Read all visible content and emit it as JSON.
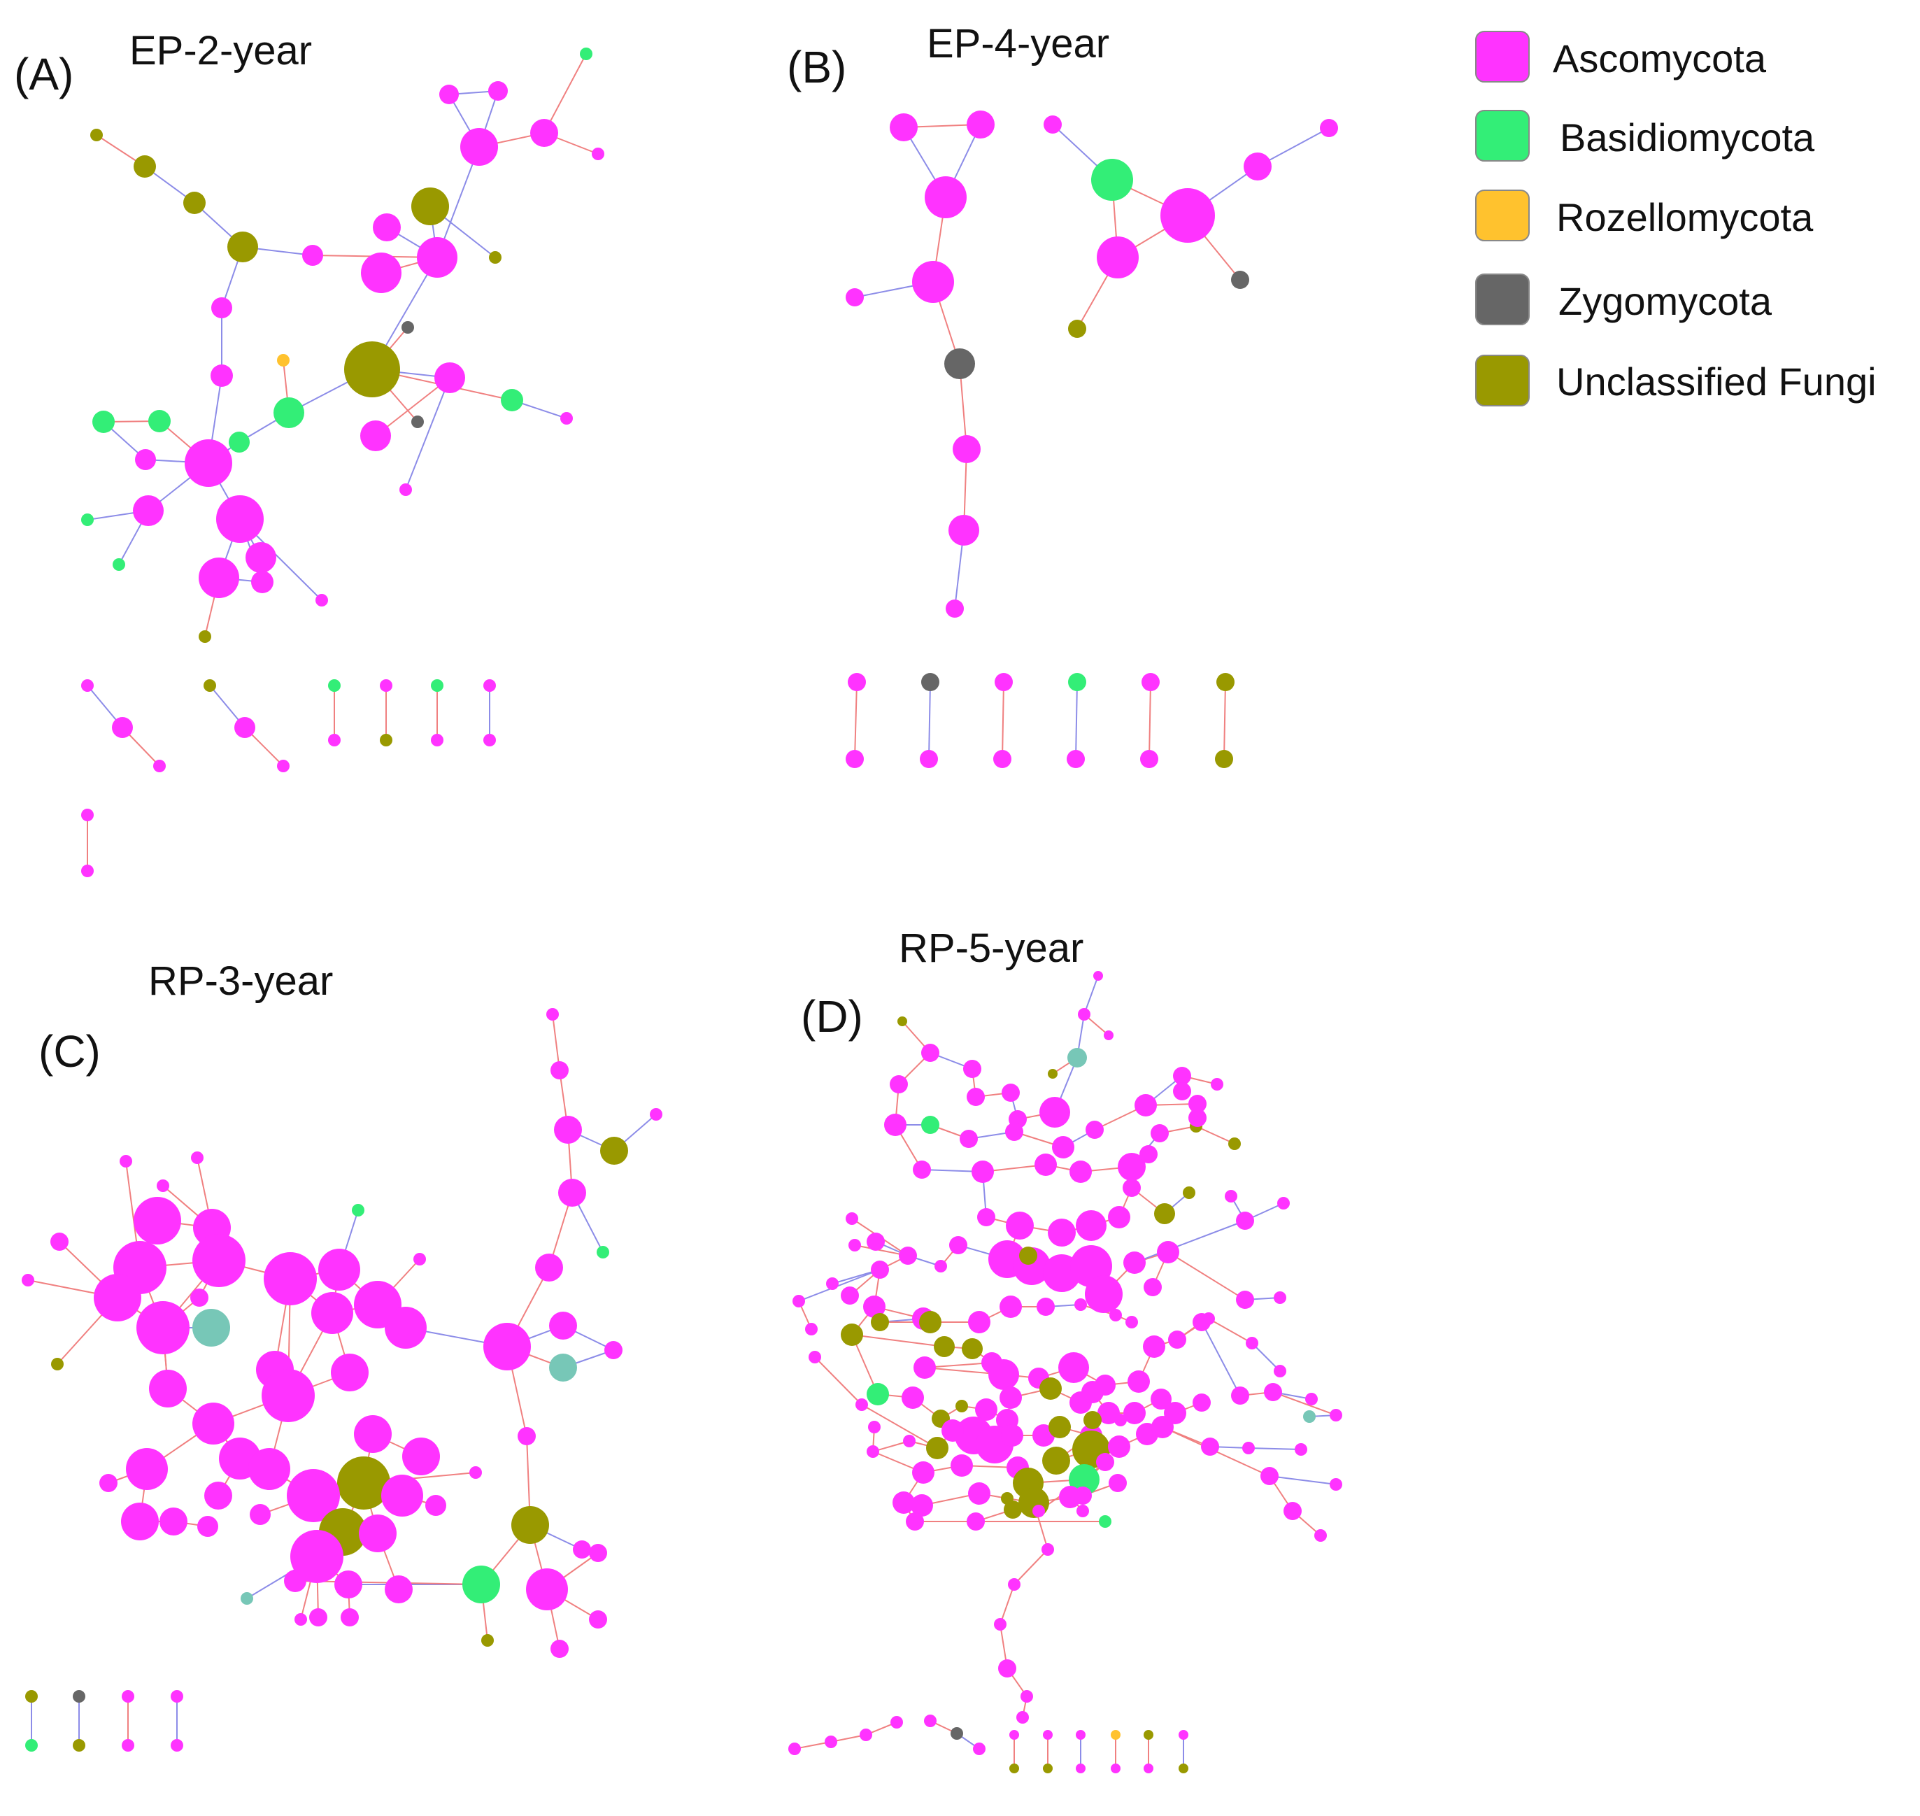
{
  "panels": [
    {
      "id": "A",
      "label": "(A)",
      "title": "EP-2-year"
    },
    {
      "id": "B",
      "label": "(B)",
      "title": "EP-4-year"
    },
    {
      "id": "C",
      "label": "(C)",
      "title": "RP-3-year"
    },
    {
      "id": "D",
      "label": "(D)",
      "title": "RP-5-year"
    }
  ],
  "legend": {
    "items": [
      {
        "name": "Ascomycota",
        "color": "#FF33FF"
      },
      {
        "name": "Basidiomycota",
        "color": "#33EE77"
      },
      {
        "name": "Rozellomycota",
        "color": "#FFC22E"
      },
      {
        "name": "Zygomycota",
        "color": "#666666"
      },
      {
        "name": "Unclassified Fungi",
        "color": "#999900"
      }
    ]
  },
  "node_colors": {
    "Ascomycota": "#FF33FF",
    "Basidiomycota": "#33EE77",
    "Rozellomycota": "#FFC22E",
    "Zygomycota": "#666666",
    "Unclassified Fungi": "#999900",
    "Other": "#77C7B7"
  },
  "edge_colors": {
    "positive": "#F08080",
    "negative": "#8C8CE8"
  }
}
